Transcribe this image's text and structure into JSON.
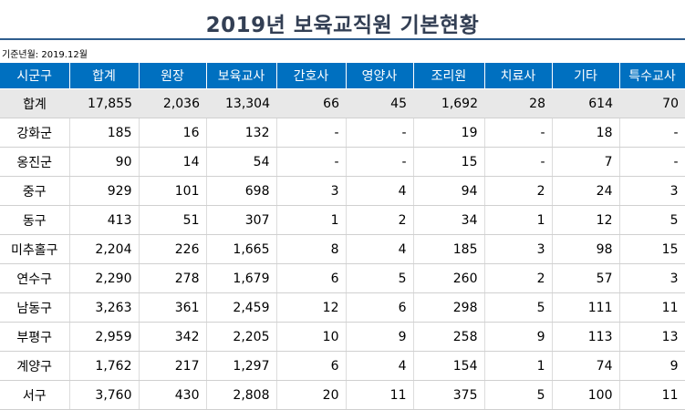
{
  "title": "2019년 보육교직원 기본현황",
  "basis": "기준년월: 2019.12월",
  "headers": [
    "시군구",
    "합계",
    "원장",
    "보육교사",
    "간호사",
    "영양사",
    "조리원",
    "치료사",
    "기타",
    "특수교사"
  ],
  "total": [
    "합계",
    "17,855",
    "2,036",
    "13,304",
    "66",
    "45",
    "1,692",
    "28",
    "614",
    "70"
  ],
  "rows": [
    [
      "강화군",
      "185",
      "16",
      "132",
      "-",
      "-",
      "19",
      "-",
      "18",
      "-"
    ],
    [
      "옹진군",
      "90",
      "14",
      "54",
      "-",
      "-",
      "15",
      "-",
      "7",
      "-"
    ],
    [
      "중구",
      "929",
      "101",
      "698",
      "3",
      "4",
      "94",
      "2",
      "24",
      "3"
    ],
    [
      "동구",
      "413",
      "51",
      "307",
      "1",
      "2",
      "34",
      "1",
      "12",
      "5"
    ],
    [
      "미추홀구",
      "2,204",
      "226",
      "1,665",
      "8",
      "4",
      "185",
      "3",
      "98",
      "15"
    ],
    [
      "연수구",
      "2,290",
      "278",
      "1,679",
      "6",
      "5",
      "260",
      "2",
      "57",
      "3"
    ],
    [
      "남동구",
      "3,263",
      "361",
      "2,459",
      "12",
      "6",
      "298",
      "5",
      "111",
      "11"
    ],
    [
      "부평구",
      "2,959",
      "342",
      "2,205",
      "10",
      "9",
      "258",
      "9",
      "113",
      "13"
    ],
    [
      "계양구",
      "1,762",
      "217",
      "1,297",
      "6",
      "4",
      "154",
      "1",
      "74",
      "9"
    ],
    [
      "서구",
      "3,760",
      "430",
      "2,808",
      "20",
      "11",
      "375",
      "5",
      "100",
      "11"
    ]
  ]
}
